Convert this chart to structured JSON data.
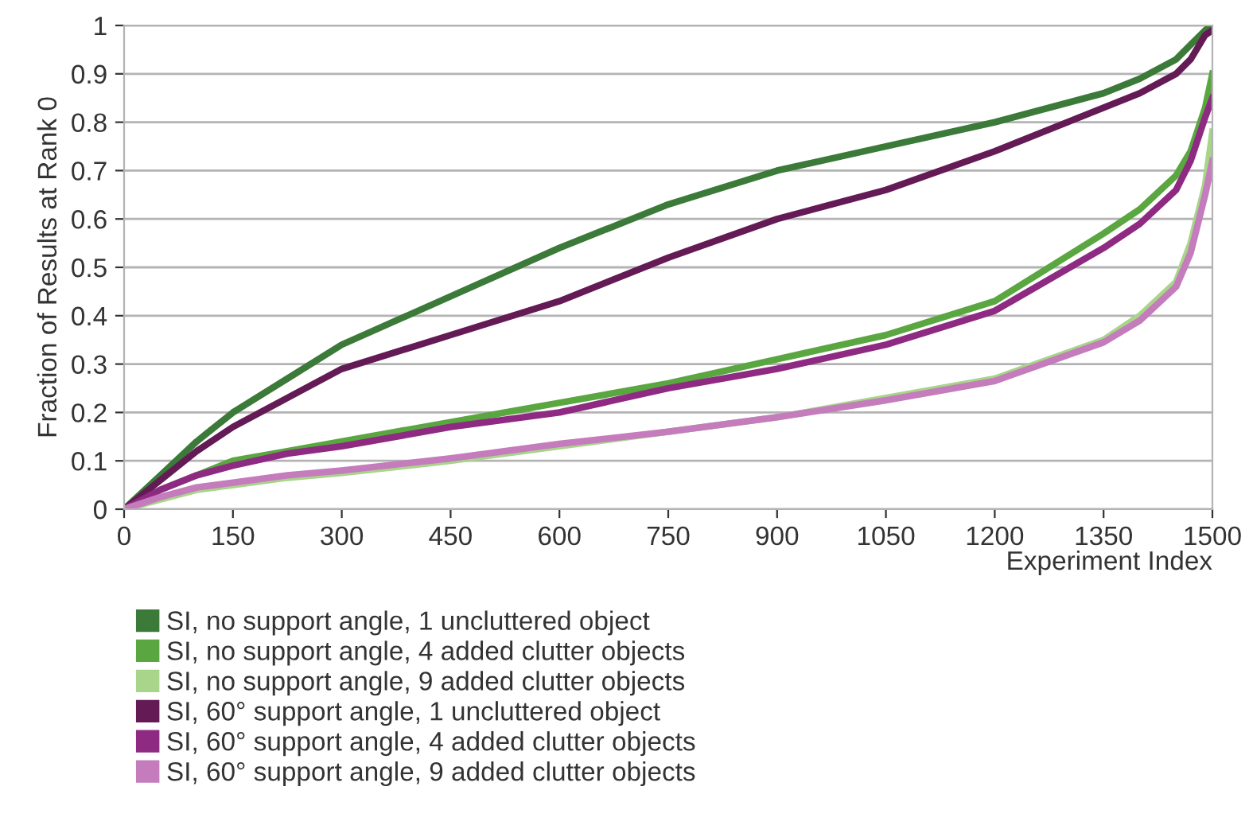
{
  "chart_data": {
    "type": "line",
    "xlabel": "Experiment Index",
    "ylabel": "Fraction of Results at Rank 0",
    "x": [
      0,
      50,
      100,
      150,
      225,
      300,
      450,
      600,
      750,
      900,
      1050,
      1200,
      1350,
      1400,
      1450,
      1470,
      1490,
      1500
    ],
    "series": [
      {
        "name": "SI, no support angle, 1 uncluttered object",
        "color": "#3b7a38",
        "values": [
          0,
          0.07,
          0.14,
          0.2,
          0.27,
          0.34,
          0.44,
          0.54,
          0.63,
          0.7,
          0.75,
          0.8,
          0.86,
          0.89,
          0.93,
          0.96,
          0.99,
          1.0
        ]
      },
      {
        "name": "SI, no support angle, 4 added clutter objects",
        "color": "#5aa640",
        "values": [
          0,
          0.04,
          0.07,
          0.1,
          0.12,
          0.14,
          0.18,
          0.22,
          0.26,
          0.31,
          0.36,
          0.43,
          0.57,
          0.62,
          0.69,
          0.74,
          0.83,
          0.9
        ]
      },
      {
        "name": "SI, no support angle, 9 added clutter objects",
        "color": "#a8d58a",
        "values": [
          0,
          0.02,
          0.04,
          0.05,
          0.065,
          0.075,
          0.1,
          0.13,
          0.16,
          0.19,
          0.23,
          0.27,
          0.35,
          0.4,
          0.47,
          0.55,
          0.67,
          0.78
        ]
      },
      {
        "name": "SI, 60° support angle, 1 uncluttered object",
        "color": "#641a55",
        "values": [
          0,
          0.06,
          0.12,
          0.17,
          0.23,
          0.29,
          0.36,
          0.43,
          0.52,
          0.6,
          0.66,
          0.74,
          0.83,
          0.86,
          0.9,
          0.93,
          0.98,
          0.99
        ]
      },
      {
        "name": "SI, 60° support angle, 4 added clutter objects",
        "color": "#8e2a82",
        "values": [
          0,
          0.04,
          0.07,
          0.09,
          0.115,
          0.13,
          0.17,
          0.2,
          0.25,
          0.29,
          0.34,
          0.41,
          0.54,
          0.59,
          0.66,
          0.72,
          0.81,
          0.85
        ]
      },
      {
        "name": "SI, 60° support angle, 9 added clutter objects",
        "color": "#c47cbc",
        "values": [
          0,
          0.025,
          0.045,
          0.055,
          0.07,
          0.08,
          0.105,
          0.135,
          0.16,
          0.19,
          0.225,
          0.265,
          0.345,
          0.39,
          0.46,
          0.53,
          0.65,
          0.72
        ]
      }
    ],
    "xlim": [
      0,
      1500
    ],
    "xticks": [
      0,
      150,
      300,
      450,
      600,
      750,
      900,
      1050,
      1200,
      1350,
      1500
    ],
    "ylim": [
      0,
      1
    ],
    "yticks": [
      0,
      0.1,
      0.2,
      0.3,
      0.4,
      0.5,
      0.6,
      0.7,
      0.8,
      0.9,
      1
    ],
    "grid": "y",
    "legend": "bottom",
    "line_style": "solid"
  }
}
